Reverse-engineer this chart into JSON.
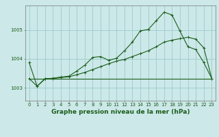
{
  "background_color": "#cce8e8",
  "grid_color": "#99cccc",
  "line_color": "#1a5c1a",
  "xlabel": "Graphe pression niveau de la mer (hPa)",
  "xlabel_fontsize": 6.5,
  "tick_fontsize": 5.0,
  "ytick_labels": [
    1003,
    1004,
    1005
  ],
  "ylim": [
    1002.55,
    1005.85
  ],
  "xlim": [
    -0.5,
    23.5
  ],
  "xticks": [
    0,
    1,
    2,
    3,
    4,
    5,
    6,
    7,
    8,
    9,
    10,
    11,
    12,
    13,
    14,
    15,
    16,
    17,
    18,
    19,
    20,
    21,
    22,
    23
  ],
  "series1": [
    1003.87,
    1003.05,
    1003.3,
    1003.33,
    1003.37,
    1003.4,
    1003.58,
    1003.78,
    1004.05,
    1004.08,
    1003.95,
    1004.02,
    1004.28,
    1004.58,
    1004.97,
    1005.02,
    1005.32,
    1005.62,
    1005.52,
    1004.96,
    1004.42,
    1004.32,
    1003.87,
    1003.32
  ],
  "series2": [
    1003.32,
    1003.32,
    1003.32,
    1003.32,
    1003.32,
    1003.32,
    1003.32,
    1003.32,
    1003.32,
    1003.32,
    1003.32,
    1003.32,
    1003.32,
    1003.32,
    1003.32,
    1003.32,
    1003.32,
    1003.32,
    1003.32,
    1003.32,
    1003.32,
    1003.32,
    1003.32,
    1003.32
  ],
  "series3": [
    1003.32,
    1003.05,
    1003.32,
    1003.32,
    1003.35,
    1003.38,
    1003.45,
    1003.53,
    1003.63,
    1003.73,
    1003.83,
    1003.92,
    1003.98,
    1004.08,
    1004.18,
    1004.28,
    1004.42,
    1004.58,
    1004.65,
    1004.7,
    1004.75,
    1004.68,
    1004.38,
    1003.32
  ]
}
